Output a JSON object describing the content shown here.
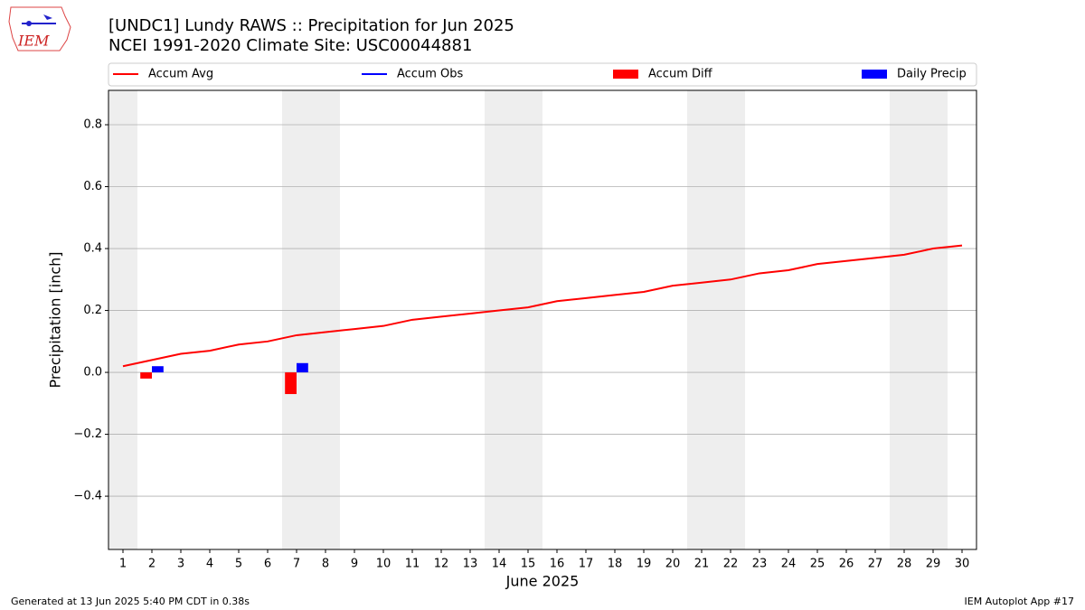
{
  "chart_data": {
    "type": "combo",
    "title": "[UNDC1] Lundy RAWS :: Precipitation for Jun 2025",
    "subtitle": "NCEI 1991-2020 Climate Site: USC00044881",
    "logo_text": "IEM",
    "x_label": "June 2025",
    "y_label": "Precipitation [inch]",
    "footer_left": "Generated at 13 Jun 2025 5:40 PM CDT in 0.38s",
    "footer_right": "IEM Autoplot App #17",
    "x": [
      1,
      2,
      3,
      4,
      5,
      6,
      7,
      8,
      9,
      10,
      11,
      12,
      13,
      14,
      15,
      16,
      17,
      18,
      19,
      20,
      21,
      22,
      23,
      24,
      25,
      26,
      27,
      28,
      29,
      30
    ],
    "xlim": [
      0.5,
      30.5
    ],
    "xticks": [
      1,
      2,
      3,
      4,
      5,
      6,
      7,
      8,
      9,
      10,
      11,
      12,
      13,
      14,
      15,
      16,
      17,
      18,
      19,
      20,
      21,
      22,
      23,
      24,
      25,
      26,
      27,
      28,
      29,
      30
    ],
    "ylim": [
      -0.572,
      0.911
    ],
    "yticks": [
      {
        "value": -0.4,
        "label": "−0.4"
      },
      {
        "value": -0.2,
        "label": "−0.2"
      },
      {
        "value": 0,
        "label": "0.0"
      },
      0.2,
      0.4,
      0.6,
      0.8
    ],
    "grid": "y",
    "legend": "top",
    "shaded_ranges": [
      [
        0.5,
        1.5
      ],
      [
        6.5,
        8.5
      ],
      [
        13.5,
        15.5
      ],
      [
        20.5,
        22.5
      ],
      [
        27.5,
        29.5
      ]
    ],
    "shade_color": "#eeeeee",
    "series": [
      {
        "name": "Accum Avg",
        "type": "line",
        "color": "#ff0000",
        "values": [
          0.02,
          0.04,
          0.06,
          0.07,
          0.09,
          0.1,
          0.12,
          0.13,
          0.14,
          0.15,
          0.17,
          0.18,
          0.19,
          0.2,
          0.21,
          0.23,
          0.24,
          0.25,
          0.26,
          0.28,
          0.29,
          0.3,
          0.32,
          0.33,
          0.35,
          0.36,
          0.37,
          0.38,
          0.4,
          0.41
        ]
      },
      {
        "name": "Accum Obs",
        "type": "line",
        "color": "#0000ff",
        "values": [
          null,
          null,
          null,
          null,
          null,
          null,
          null,
          null,
          null,
          null,
          null,
          null,
          null,
          null,
          null,
          null,
          null,
          null,
          null,
          null,
          null,
          null,
          null,
          null,
          null,
          null,
          null,
          null,
          null,
          null
        ]
      },
      {
        "name": "Accum Diff",
        "type": "bar",
        "color": "#ff0000",
        "values": [
          null,
          -0.02,
          null,
          null,
          null,
          null,
          -0.07,
          null,
          null,
          null,
          null,
          null,
          null,
          null,
          null,
          null,
          null,
          null,
          null,
          null,
          null,
          null,
          null,
          null,
          null,
          null,
          null,
          null,
          null,
          null
        ]
      },
      {
        "name": "Daily Precip",
        "type": "bar",
        "color": "#0000ff",
        "values": [
          null,
          0.02,
          null,
          null,
          null,
          null,
          0.03,
          null,
          null,
          null,
          null,
          null,
          null,
          null,
          null,
          null,
          null,
          null,
          null,
          null,
          null,
          null,
          null,
          null,
          null,
          null,
          null,
          null,
          null,
          null
        ]
      }
    ]
  }
}
